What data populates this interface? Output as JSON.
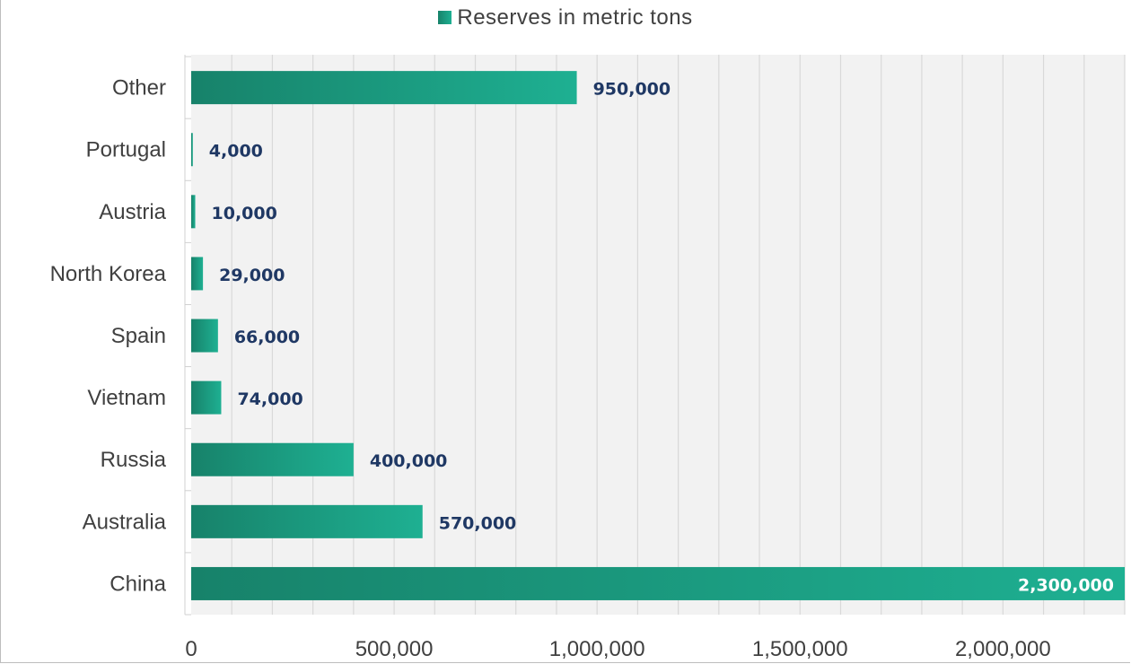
{
  "chart_data": {
    "type": "bar",
    "orientation": "horizontal",
    "categories": [
      "China",
      "Australia",
      "Russia",
      "Vietnam",
      "Spain",
      "North Korea",
      "Austria",
      "Portugal",
      "Other"
    ],
    "series": [
      {
        "name": "Reserves in metric tons",
        "values": [
          2300000,
          570000,
          400000,
          74000,
          66000,
          29000,
          10000,
          4000,
          950000
        ],
        "data_labels": [
          "2,300,000",
          "570,000",
          "400,000",
          "74,000",
          "66,000",
          "29,000",
          "10,000",
          "4,000",
          "950,000"
        ]
      }
    ],
    "xlim": [
      0,
      2300000
    ],
    "x_ticks": [
      0,
      500000,
      1000000,
      1500000,
      2000000
    ],
    "x_tick_labels": [
      "0",
      "500,000",
      "1,000,000",
      "1,500,000",
      "2,000,000"
    ],
    "grid": "vertical",
    "legend_position": "top",
    "colors": {
      "bar_dark": "#17826a",
      "bar_light": "#1eb092",
      "data_label": "#1f3864",
      "data_label_inside": "#ffffff",
      "plot_background": "#f2f2f2",
      "grid": "#d9d9d9"
    }
  }
}
